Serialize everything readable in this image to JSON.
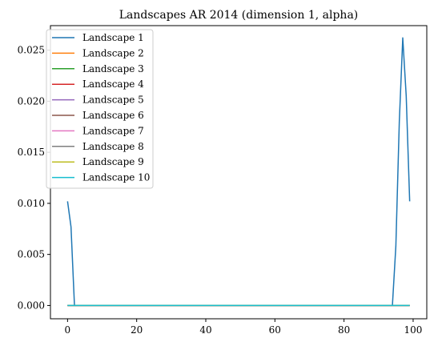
{
  "chart_data": {
    "type": "line",
    "title": "Landscapes AR 2014 (dimension 1, alpha)",
    "xlabel": "",
    "ylabel": "",
    "xlim": [
      -4.95,
      103.95
    ],
    "ylim": [
      -0.0013,
      0.0274
    ],
    "xticks": [
      0,
      20,
      40,
      60,
      80,
      100
    ],
    "xtick_labels": [
      "0",
      "20",
      "40",
      "60",
      "80",
      "100"
    ],
    "yticks": [
      0.0,
      0.005,
      0.01,
      0.015,
      0.02,
      0.025
    ],
    "ytick_labels": [
      "0.000",
      "0.005",
      "0.010",
      "0.015",
      "0.020",
      "0.025"
    ],
    "grid": false,
    "legend_position": "upper-left",
    "x": {
      "start": 0,
      "end": 99
    },
    "series": [
      {
        "name": "Landscape 1",
        "color": "#1f77b4",
        "points": [
          [
            0,
            0.0102
          ],
          [
            1,
            0.0077
          ],
          [
            2,
            0.0
          ],
          [
            94,
            0.0
          ],
          [
            95,
            0.0058
          ],
          [
            96,
            0.018
          ],
          [
            97,
            0.0262
          ],
          [
            98,
            0.0205
          ],
          [
            99,
            0.0102
          ]
        ]
      },
      {
        "name": "Landscape 2",
        "color": "#ff7f0e",
        "points": [
          [
            0,
            0.0
          ],
          [
            99,
            0.0
          ]
        ]
      },
      {
        "name": "Landscape 3",
        "color": "#2ca02c",
        "points": [
          [
            0,
            0.0
          ],
          [
            99,
            0.0
          ]
        ]
      },
      {
        "name": "Landscape 4",
        "color": "#d62728",
        "points": [
          [
            0,
            0.0
          ],
          [
            99,
            0.0
          ]
        ]
      },
      {
        "name": "Landscape 5",
        "color": "#9467bd",
        "points": [
          [
            0,
            0.0
          ],
          [
            99,
            0.0
          ]
        ]
      },
      {
        "name": "Landscape 6",
        "color": "#8c564b",
        "points": [
          [
            0,
            0.0
          ],
          [
            99,
            0.0
          ]
        ]
      },
      {
        "name": "Landscape 7",
        "color": "#e377c2",
        "points": [
          [
            0,
            0.0
          ],
          [
            99,
            0.0
          ]
        ]
      },
      {
        "name": "Landscape 8",
        "color": "#7f7f7f",
        "points": [
          [
            0,
            0.0
          ],
          [
            99,
            0.0
          ]
        ]
      },
      {
        "name": "Landscape 9",
        "color": "#bcbd22",
        "points": [
          [
            0,
            0.0
          ],
          [
            99,
            0.0
          ]
        ]
      },
      {
        "name": "Landscape 10",
        "color": "#17becf",
        "points": [
          [
            0,
            0.0
          ],
          [
            99,
            0.0
          ]
        ]
      }
    ]
  }
}
